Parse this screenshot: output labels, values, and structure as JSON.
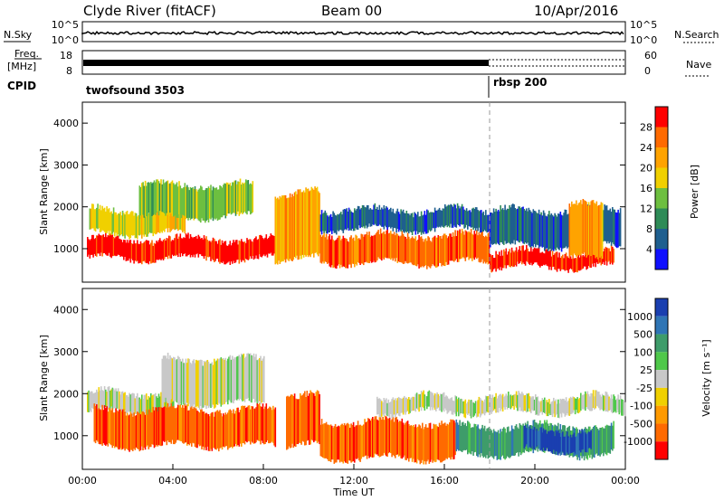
{
  "header": {
    "station": "Clyde River (fitACF)",
    "beam": "Beam 00",
    "date": "10/Apr/2016"
  },
  "top_panels": {
    "nsky_label": "N.Sky",
    "nsky_ticks": [
      "10^5",
      "10^0"
    ],
    "nsky_right_ticks": [
      "10^5",
      "10^0"
    ],
    "nsearch_label": "N.Search",
    "freq_label_1": "Freq.",
    "freq_label_2": "[MHz]",
    "freq_ticks": [
      "18",
      "8"
    ],
    "nave_ticks": [
      "60",
      "0"
    ],
    "nave_label": "Nave",
    "cpid_label": "CPID",
    "cpid_1": "twofsound 3503",
    "cpid_2": "rbsp 200"
  },
  "chart_data": [
    {
      "type": "heatmap",
      "name": "power-panel",
      "ylabel": "Slant Range [km]",
      "y_ticks": [
        "4000",
        "3000",
        "2000",
        "1000"
      ],
      "ylim": [
        200,
        4500
      ],
      "x_range_hours": [
        0,
        24
      ],
      "colorbar": {
        "label": "Power [dB]",
        "ticks": [
          "28",
          "24",
          "20",
          "16",
          "12",
          "8",
          "4"
        ],
        "colors": [
          "#ff0000",
          "#ff6a00",
          "#ffa300",
          "#f0d000",
          "#6dbf40",
          "#2e8b57",
          "#1f5f8f",
          "#1010ff"
        ]
      },
      "bands": [
        {
          "t0": 0.2,
          "t1": 9.0,
          "r0": 700,
          "r1": 1300,
          "c": 0
        },
        {
          "t0": 0.3,
          "t1": 4.5,
          "r0": 1300,
          "r1": 2000,
          "c": 3
        },
        {
          "t0": 2.5,
          "t1": 7.5,
          "r0": 1700,
          "r1": 2600,
          "c": 4
        },
        {
          "t0": 8.5,
          "t1": 10.5,
          "r0": 700,
          "r1": 2400,
          "c": 2
        },
        {
          "t0": 10.5,
          "t1": 18.0,
          "r0": 600,
          "r1": 1400,
          "c": 1
        },
        {
          "t0": 10.5,
          "t1": 18.0,
          "r0": 1400,
          "r1": 2000,
          "c": 6
        },
        {
          "t0": 18.0,
          "t1": 23.5,
          "r0": 500,
          "r1": 1000,
          "c": 0
        },
        {
          "t0": 18.0,
          "t1": 23.8,
          "r0": 1000,
          "r1": 2000,
          "c": 6
        },
        {
          "t0": 21.5,
          "t1": 23.0,
          "r0": 700,
          "r1": 2100,
          "c": 2
        }
      ]
    },
    {
      "type": "heatmap",
      "name": "velocity-panel",
      "ylabel": "Slant Range [km]",
      "y_ticks": [
        "4000",
        "3000",
        "2000",
        "1000"
      ],
      "ylim": [
        200,
        4500
      ],
      "x_range_hours": [
        0,
        24
      ],
      "xlabel": "Time UT",
      "x_ticks": [
        "00:00",
        "04:00",
        "08:00",
        "12:00",
        "16:00",
        "20:00",
        "00:00"
      ],
      "colorbar": {
        "label": "Velocity [m s⁻¹]",
        "ticks": [
          "1000",
          "500",
          "100",
          "25",
          "-25",
          "-100",
          "-500",
          "-1000"
        ],
        "colors": [
          "#1a3fb0",
          "#2f75b5",
          "#3e9c6a",
          "#4fc84a",
          "#c8c8c8",
          "#f0d000",
          "#ff9a00",
          "#ff6a00",
          "#ff0000"
        ]
      },
      "bands": [
        {
          "t0": 0.2,
          "t1": 4.0,
          "r0": 1500,
          "r1": 2100,
          "c": 4
        },
        {
          "t0": 0.5,
          "t1": 8.5,
          "r0": 700,
          "r1": 1700,
          "c": 7
        },
        {
          "t0": 3.5,
          "t1": 8.0,
          "r0": 1700,
          "r1": 2900,
          "c": 4
        },
        {
          "t0": 9.0,
          "t1": 10.5,
          "r0": 700,
          "r1": 2000,
          "c": 7
        },
        {
          "t0": 10.5,
          "t1": 16.5,
          "r0": 400,
          "r1": 1400,
          "c": 7
        },
        {
          "t0": 16.5,
          "t1": 23.5,
          "r0": 500,
          "r1": 1300,
          "c": 2
        },
        {
          "t0": 19.5,
          "t1": 22.5,
          "r0": 600,
          "r1": 1200,
          "c": 0
        },
        {
          "t0": 13.0,
          "t1": 24.0,
          "r0": 1500,
          "r1": 2000,
          "c": 4
        }
      ]
    }
  ]
}
